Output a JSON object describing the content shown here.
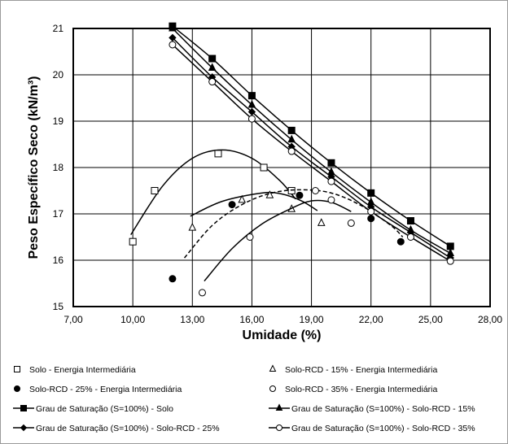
{
  "chart_data": {
    "type": "scatter",
    "xlabel": "Umidade (%)",
    "ylabel": "Peso Específico Seco (kN/m³)",
    "xlim": [
      7,
      28
    ],
    "ylim": [
      15,
      21
    ],
    "x_ticks": [
      "7,00",
      "10,00",
      "13,00",
      "16,00",
      "19,00",
      "22,00",
      "25,00",
      "28,00"
    ],
    "x_tick_values": [
      7,
      10,
      13,
      16,
      19,
      22,
      25,
      28
    ],
    "y_ticks": [
      "15",
      "16",
      "17",
      "18",
      "19",
      "20",
      "21"
    ],
    "y_tick_values": [
      15,
      16,
      17,
      18,
      19,
      20,
      21
    ],
    "grid": "both",
    "legend_position": "bottom",
    "series": [
      {
        "name": "Solo - Energia Intermediária",
        "kind": "points",
        "marker": "square-open",
        "points": [
          [
            10,
            16.4
          ],
          [
            11.1,
            17.5
          ],
          [
            14.3,
            18.3
          ],
          [
            16.6,
            18.0
          ],
          [
            18.0,
            17.5
          ]
        ],
        "curve": [
          [
            9.9,
            16.55
          ],
          [
            11.5,
            17.6
          ],
          [
            13.0,
            18.2
          ],
          [
            14.5,
            18.38
          ],
          [
            16.0,
            18.2
          ],
          [
            17.4,
            17.72
          ],
          [
            18.2,
            17.32
          ]
        ],
        "curve_style": "solid"
      },
      {
        "name": "Solo-RCD - 15% - Energia Intermediária",
        "kind": "points",
        "marker": "triangle-open",
        "points": [
          [
            13.0,
            16.7
          ],
          [
            15.5,
            17.3
          ],
          [
            16.9,
            17.4
          ],
          [
            18.0,
            17.1
          ],
          [
            19.5,
            16.8
          ]
        ],
        "curve": [
          [
            12.9,
            16.95
          ],
          [
            14.5,
            17.27
          ],
          [
            16.5,
            17.45
          ],
          [
            17.5,
            17.43
          ],
          [
            18.5,
            17.28
          ],
          [
            19.3,
            17.07
          ]
        ],
        "curve_style": "solid"
      },
      {
        "name": "Solo-RCD - 25% - Energia Intermediária",
        "kind": "points",
        "marker": "circle-filled",
        "points": [
          [
            12.0,
            15.6
          ],
          [
            15.0,
            17.2
          ],
          [
            18.4,
            17.4
          ],
          [
            22.0,
            16.9
          ],
          [
            23.5,
            16.4
          ]
        ],
        "curve": [
          [
            12.6,
            16.05
          ],
          [
            14.0,
            16.75
          ],
          [
            15.5,
            17.2
          ],
          [
            17.0,
            17.45
          ],
          [
            18.5,
            17.52
          ],
          [
            20.0,
            17.45
          ],
          [
            21.5,
            17.18
          ],
          [
            23.0,
            16.75
          ],
          [
            23.6,
            16.5
          ]
        ],
        "curve_style": "dashed"
      },
      {
        "name": "Solo-RCD - 35% - Energia Intermediária",
        "kind": "points",
        "marker": "circle-open",
        "points": [
          [
            13.5,
            15.3
          ],
          [
            15.9,
            16.5
          ],
          [
            19.2,
            17.5
          ],
          [
            20.0,
            17.3
          ],
          [
            21.0,
            16.8
          ]
        ],
        "curve": [
          [
            13.6,
            15.55
          ],
          [
            15.0,
            16.25
          ],
          [
            16.5,
            16.78
          ],
          [
            18.0,
            17.12
          ],
          [
            19.0,
            17.28
          ],
          [
            20.0,
            17.25
          ],
          [
            21.0,
            17.05
          ]
        ],
        "curve_style": "solid"
      },
      {
        "name": "Grau de Saturação (S=100%) - Solo",
        "kind": "line",
        "marker": "square-filled",
        "points": [
          [
            12.0,
            21.05
          ],
          [
            14.0,
            20.35
          ],
          [
            16.0,
            19.55
          ],
          [
            18.0,
            18.8
          ],
          [
            20.0,
            18.1
          ],
          [
            22.0,
            17.45
          ],
          [
            24.0,
            16.85
          ],
          [
            26.0,
            16.3
          ]
        ]
      },
      {
        "name": "Grau de Saturação (S=100%) - Solo-RCD - 15%",
        "kind": "line",
        "marker": "triangle-filled",
        "points": [
          [
            12.0,
            21.0
          ],
          [
            14.0,
            20.15
          ],
          [
            16.0,
            19.35
          ],
          [
            18.0,
            18.6
          ],
          [
            20.0,
            17.9
          ],
          [
            22.0,
            17.25
          ],
          [
            24.0,
            16.65
          ],
          [
            26.0,
            16.15
          ]
        ]
      },
      {
        "name": "Grau de Saturação (S=100%) - Solo-RCD - 25%",
        "kind": "line",
        "marker": "diamond-filled",
        "points": [
          [
            12.0,
            20.8
          ],
          [
            14.0,
            19.95
          ],
          [
            16.0,
            19.2
          ],
          [
            18.0,
            18.45
          ],
          [
            20.0,
            17.8
          ],
          [
            22.0,
            17.15
          ],
          [
            24.0,
            16.6
          ],
          [
            26.0,
            16.05
          ]
        ]
      },
      {
        "name": "Grau de Saturação (S=100%) - Solo-RCD - 35%",
        "kind": "line",
        "marker": "circle-open",
        "points": [
          [
            12.0,
            20.65
          ],
          [
            14.0,
            19.85
          ],
          [
            16.0,
            19.05
          ],
          [
            18.0,
            18.35
          ],
          [
            20.0,
            17.7
          ],
          [
            22.0,
            17.05
          ],
          [
            24.0,
            16.5
          ],
          [
            26.0,
            15.98
          ]
        ]
      }
    ]
  }
}
